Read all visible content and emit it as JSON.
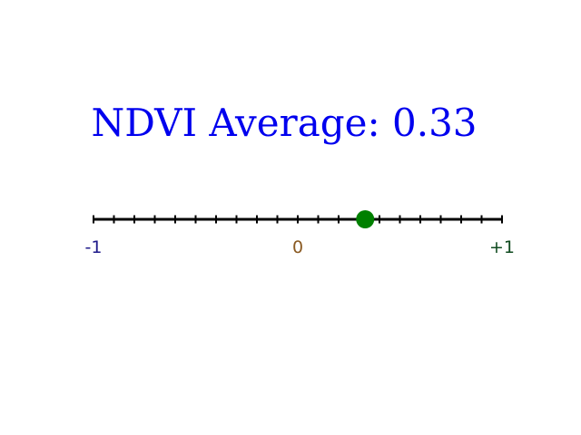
{
  "chart_data": {
    "type": "scatter",
    "title": "NDVI Average: 0.33",
    "xlim": [
      -1,
      1
    ],
    "minor_tick_step": 0.1,
    "tick_labels": [
      {
        "value": -1,
        "text": "-1",
        "color": "#1f1a8a"
      },
      {
        "value": 0,
        "text": "0",
        "color": "#8a5a22"
      },
      {
        "value": 1,
        "text": "+1",
        "color": "#0f4a1f"
      }
    ],
    "points": [
      {
        "x": 0.33,
        "color": "#008000"
      }
    ],
    "title_color": "#0000ee",
    "line_color": "#000000"
  }
}
